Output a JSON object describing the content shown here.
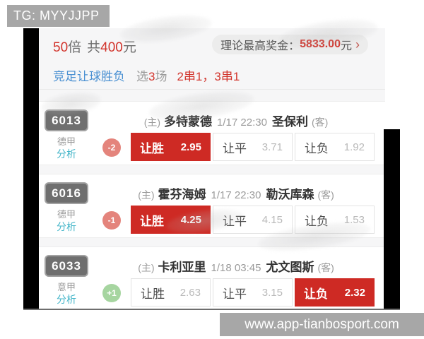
{
  "overlay": {
    "tg_label": "TG: MYYJJPP",
    "site_label": "www.app-tianbosport.com"
  },
  "header": {
    "multiplier_value": "50",
    "multiplier_unit": "倍",
    "total_prefix": "共",
    "total_value": "400",
    "total_unit": "元",
    "prize_label": "理论最高奖金：",
    "prize_value": "5833.00",
    "prize_unit": "元",
    "chevron": "›"
  },
  "filter": {
    "bet_type": "竞足让球胜负",
    "select_prefix": "选",
    "select_count": "3",
    "select_suffix": "场",
    "combos": "2串1，3串1"
  },
  "matches": [
    {
      "code": "6013",
      "league": "德甲",
      "analysis_label": "分析",
      "handicap": "-2",
      "handicap_sign": "negative",
      "home_tag": "(主)",
      "home_team": "多特蒙德",
      "datetime": "1/17 22:30",
      "away_team": "圣保利",
      "away_tag": "(客)",
      "odds": [
        {
          "label": "让胜",
          "value": "2.95",
          "selected": true
        },
        {
          "label": "让平",
          "value": "3.71",
          "selected": false
        },
        {
          "label": "让负",
          "value": "1.92",
          "selected": false
        }
      ]
    },
    {
      "code": "6016",
      "league": "德甲",
      "analysis_label": "分析",
      "handicap": "-1",
      "handicap_sign": "negative",
      "home_tag": "(主)",
      "home_team": "霍芬海姆",
      "datetime": "1/17 22:30",
      "away_team": "勒沃库森",
      "away_tag": "(客)",
      "odds": [
        {
          "label": "让胜",
          "value": "4.25",
          "selected": true
        },
        {
          "label": "让平",
          "value": "4.15",
          "selected": false
        },
        {
          "label": "让负",
          "value": "1.53",
          "selected": false
        }
      ]
    },
    {
      "code": "6033",
      "league": "意甲",
      "analysis_label": "分析",
      "handicap": "+1",
      "handicap_sign": "positive",
      "home_tag": "(主)",
      "home_team": "卡利亚里",
      "datetime": "1/18 03:45",
      "away_team": "尤文图斯",
      "away_tag": "(客)",
      "odds": [
        {
          "label": "让胜",
          "value": "2.63",
          "selected": false
        },
        {
          "label": "让平",
          "value": "3.15",
          "selected": false
        },
        {
          "label": "让负",
          "value": "2.32",
          "selected": true
        }
      ]
    }
  ],
  "colors": {
    "accent_red": "#ce2a24",
    "text_red": "#d2342c",
    "bet_type_blue": "#4a90d2",
    "analysis_teal": "#45b6c9",
    "code_badge_gray": "#6f6f6f",
    "watermark_gray": "#a7a7a7",
    "negative_handicap": "#e4847c",
    "positive_handicap": "#a6d5a0",
    "panel_bg": "#f6f6f7"
  }
}
